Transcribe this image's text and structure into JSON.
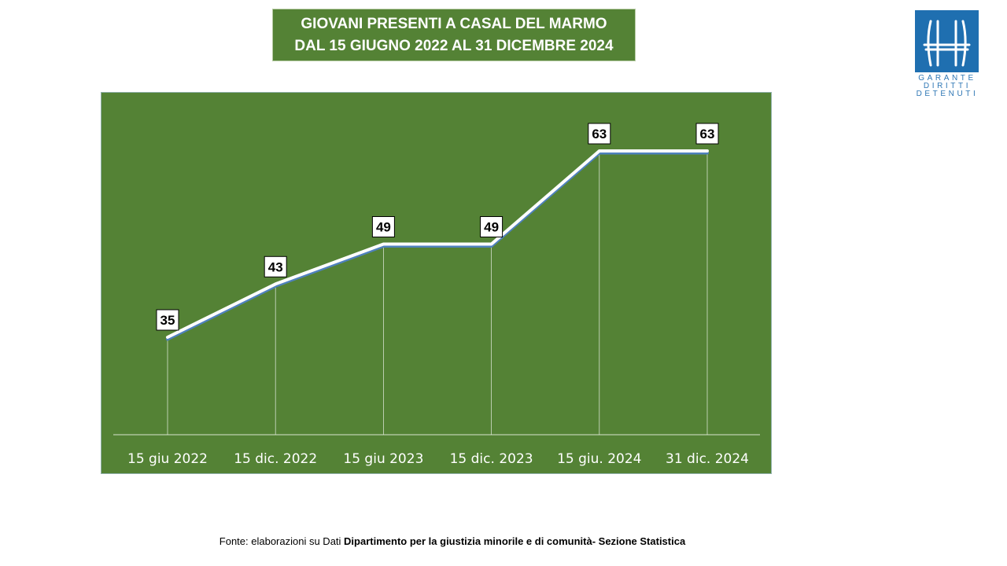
{
  "title": {
    "line1": "GIOVANI PRESENTI A CASAL DEL MARMO",
    "line2": "DAL 15 GIUGNO 2022 AL 31 DICEMBRE 2024"
  },
  "logo": {
    "line1": "GARANTE",
    "line2": "DIRITTI",
    "line3": "DETENUTI",
    "color": "#1f6fb0"
  },
  "colors": {
    "panel": "#548235",
    "line": "#ffffff",
    "shadow": "#4f81bd"
  },
  "source": {
    "prefix": "Fonte:  elaborazioni su Dati ",
    "bold": "Dipartimento per la giustizia minorile e di comunità- Sezione Statistica"
  },
  "chart_data": {
    "type": "line",
    "categories": [
      "15 giu 2022",
      "15 dic. 2022",
      "15 giu 2023",
      "15 dic. 2023",
      "15 giu. 2024",
      "31 dic. 2024"
    ],
    "values": [
      35,
      43,
      49,
      49,
      63,
      63
    ],
    "data_labels": [
      "35",
      "43",
      "49",
      "49",
      "63",
      "63"
    ],
    "grid": false,
    "drop_lines": true,
    "legend": "none"
  }
}
